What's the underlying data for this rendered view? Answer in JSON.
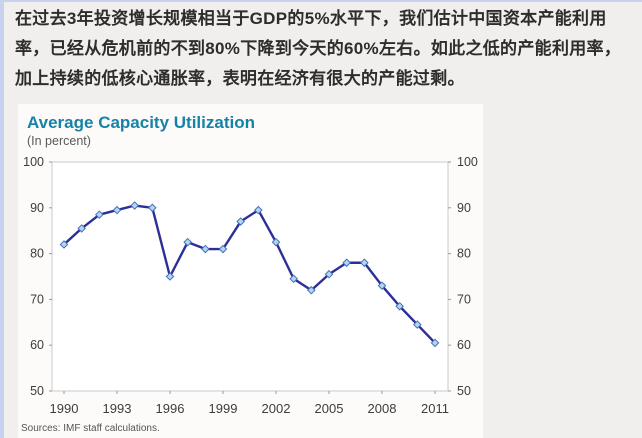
{
  "page": {
    "intro_text": "在过去3年投资增长规模相当于GDP的5%水平下，我们估计中国资本产能利用率，已经从危机前的不到80%下降到今天的60%左右。如此之低的产能利用率，加上持续的低核心通胀率，表明在经济有很大的产能过剩。"
  },
  "chart_data": {
    "type": "line",
    "title": "Average Capacity Utilization",
    "subtitle": "(In percent)",
    "source": "Sources: IMF staff calculations.",
    "x": [
      1990,
      1991,
      1992,
      1993,
      1994,
      1995,
      1996,
      1997,
      1998,
      1999,
      2000,
      2001,
      2002,
      2003,
      2004,
      2005,
      2006,
      2007,
      2008,
      2009,
      2010,
      2011
    ],
    "values": [
      82,
      85.5,
      88.5,
      89.5,
      90.5,
      90,
      75,
      82.5,
      81,
      81,
      87,
      89.5,
      82.5,
      74.5,
      72,
      75.5,
      78,
      78,
      73,
      68.5,
      64.5,
      60.5
    ],
    "ylim": [
      50,
      100
    ],
    "yticks": [
      50,
      60,
      70,
      80,
      90,
      100
    ],
    "xticks": [
      1990,
      1993,
      1996,
      1999,
      2002,
      2005,
      2008,
      2011
    ],
    "grid": false,
    "legend": "none",
    "dual_y_axis": true,
    "colors": {
      "line": "#2b2f96",
      "marker_fill": "#b5d5f2",
      "marker_stroke": "#4472b8",
      "title": "#1583a7",
      "plot_border": "#cbcac9",
      "accent_border": "#c7d2ee"
    }
  }
}
